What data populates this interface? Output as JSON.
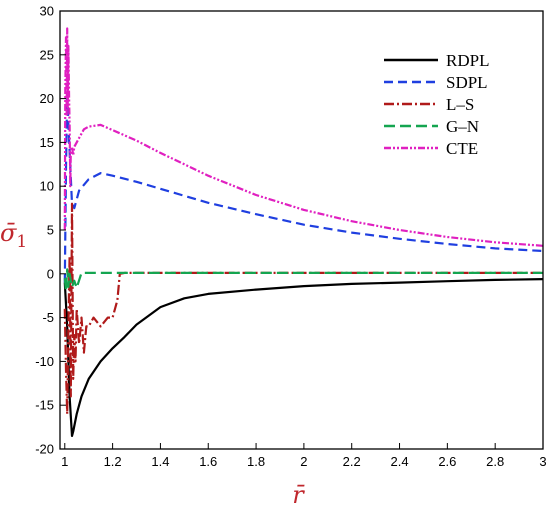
{
  "chart_data": {
    "type": "line",
    "xlabel": "r̄",
    "ylabel_main": "σ̄",
    "ylabel_sub": "1",
    "label_color": "#c0272d",
    "xlim": [
      0.98,
      3.0
    ],
    "ylim": [
      -20,
      30
    ],
    "x_ticks": [
      "1",
      "1.2",
      "1.4",
      "1.6",
      "1.8",
      "2",
      "2.2",
      "2.4",
      "2.6",
      "2.8",
      "3"
    ],
    "x_tick_values": [
      1,
      1.2,
      1.4,
      1.6,
      1.8,
      2,
      2.2,
      2.4,
      2.6,
      2.8,
      3
    ],
    "y_ticks": [
      "-20",
      "-15",
      "-10",
      "-5",
      "0",
      "5",
      "10",
      "15",
      "20",
      "25",
      "30"
    ],
    "y_tick_values": [
      -20,
      -15,
      -10,
      -5,
      0,
      5,
      10,
      15,
      20,
      25,
      30
    ],
    "grid": false,
    "legend_position": "top-right",
    "series": [
      {
        "name": "RDPL",
        "color": "#000000",
        "dash": "",
        "x": [
          1.0,
          1.01,
          1.02,
          1.03,
          1.035,
          1.05,
          1.07,
          1.1,
          1.15,
          1.2,
          1.25,
          1.3,
          1.4,
          1.5,
          1.6,
          1.8,
          2.0,
          2.2,
          2.4,
          2.6,
          2.8,
          3.0
        ],
        "y": [
          -1,
          -6,
          -14,
          -18.5,
          -18,
          -16,
          -14,
          -12,
          -10,
          -8.5,
          -7.2,
          -5.8,
          -3.8,
          -2.8,
          -2.3,
          -1.8,
          -1.4,
          -1.15,
          -1.0,
          -0.85,
          -0.7,
          -0.6
        ]
      },
      {
        "name": "SDPL",
        "color": "#1f3fe0",
        "dash": "9,5",
        "x": [
          1.0,
          1.005,
          1.01,
          1.015,
          1.02,
          1.03,
          1.04,
          1.06,
          1.1,
          1.15,
          1.2,
          1.3,
          1.4,
          1.5,
          1.6,
          1.8,
          2.0,
          2.2,
          2.4,
          2.6,
          2.8,
          3.0
        ],
        "y": [
          -1,
          12,
          21,
          17,
          14,
          8,
          7.5,
          9.5,
          10.8,
          11.5,
          11.2,
          10.5,
          9.7,
          8.9,
          8.1,
          6.8,
          5.6,
          4.7,
          4.0,
          3.4,
          2.9,
          2.6
        ]
      },
      {
        "name": "L–S",
        "color": "#b01a1a",
        "dash": "10,3,2,3",
        "x": [
          1.0,
          1.005,
          1.01,
          1.015,
          1.02,
          1.025,
          1.03,
          1.035,
          1.04,
          1.045,
          1.05,
          1.06,
          1.07,
          1.08,
          1.09,
          1.1,
          1.12,
          1.15,
          1.18,
          1.2,
          1.22,
          1.23,
          1.25,
          1.3,
          1.5,
          2.0,
          2.5,
          3.0
        ],
        "y": [
          -4,
          -11,
          -16,
          -6,
          2,
          -14,
          8,
          -12,
          -7,
          -10,
          -4,
          -8,
          -5,
          -9,
          -6,
          -6,
          -5,
          -6,
          -5,
          -5,
          -3,
          0,
          0.1,
          0.1,
          0.1,
          0.1,
          0.1,
          0.1
        ]
      },
      {
        "name": "G–N",
        "color": "#14a550",
        "dash": "11,5",
        "x": [
          1.0,
          1.005,
          1.01,
          1.015,
          1.02,
          1.03,
          1.04,
          1.05,
          1.07,
          1.1,
          1.2,
          1.5,
          2.0,
          2.5,
          3.0
        ],
        "y": [
          -0.5,
          -2,
          0.5,
          -1.5,
          0,
          -1.5,
          -0.8,
          -1.6,
          0.1,
          0.1,
          0.1,
          0.1,
          0.1,
          0.1,
          0.1
        ]
      },
      {
        "name": "CTE",
        "color": "#e020c0",
        "dash": "7,2,2,2,2,2",
        "x": [
          1.0,
          1.002,
          1.005,
          1.008,
          1.01,
          1.012,
          1.015,
          1.018,
          1.02,
          1.023,
          1.025,
          1.03,
          1.035,
          1.04,
          1.06,
          1.08,
          1.1,
          1.15,
          1.2,
          1.3,
          1.4,
          1.6,
          1.8,
          2.0,
          2.2,
          2.4,
          2.6,
          2.8,
          3.0
        ],
        "y": [
          5,
          21,
          27,
          18,
          28,
          19,
          26,
          20,
          17,
          10,
          14,
          14.5,
          13.5,
          14.5,
          15.5,
          16.5,
          16.8,
          17.0,
          16.4,
          15.2,
          13.8,
          11.2,
          9.0,
          7.3,
          6.0,
          5.0,
          4.2,
          3.6,
          3.2
        ]
      }
    ]
  }
}
